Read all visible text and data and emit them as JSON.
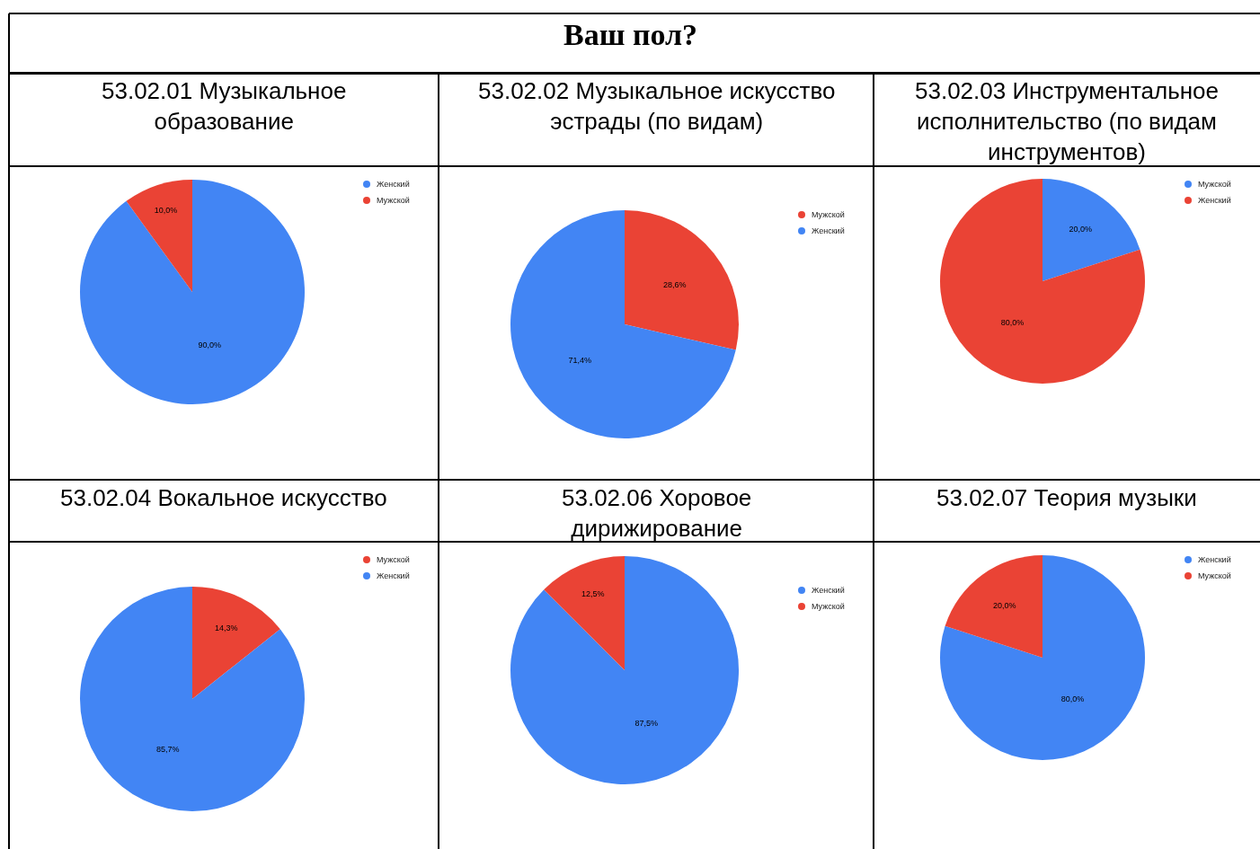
{
  "chart_data": [
    {
      "type": "pie",
      "title": "53.02.01 Музыкальное\nобразование",
      "annotations": [
        "Ваш пол?"
      ],
      "categories": [
        "Женский",
        "Мужской"
      ],
      "values": [
        90.0,
        10.0
      ],
      "colors": [
        "#4285f4",
        "#ea4335"
      ],
      "value_labels": [
        "90,0%",
        "10,0%"
      ],
      "legend": "top right"
    },
    {
      "type": "pie",
      "title": "53.02.02 Музыкальное искусство\nэстрады (по видам)",
      "categories": [
        "Мужской",
        "Женский"
      ],
      "values": [
        28.6,
        71.4
      ],
      "colors": [
        "#ea4335",
        "#4285f4"
      ],
      "value_labels": [
        "28,6%",
        "71,4%"
      ],
      "legend": "top right"
    },
    {
      "type": "pie",
      "title": "53.02.03 Инструментальное\nисполнительство (по видам\nинструментов)",
      "categories": [
        "Мужской",
        "Женский"
      ],
      "values": [
        20.0,
        80.0
      ],
      "colors": [
        "#4285f4",
        "#ea4335"
      ],
      "value_labels": [
        "20,0%",
        "80,0%"
      ],
      "legend": "top right"
    },
    {
      "type": "pie",
      "title": "53.02.04 Вокальное искусство",
      "categories": [
        "Мужской",
        "Женский"
      ],
      "values": [
        14.3,
        85.7
      ],
      "colors": [
        "#ea4335",
        "#4285f4"
      ],
      "value_labels": [
        "14,3%",
        "85,7%"
      ],
      "legend": "top right"
    },
    {
      "type": "pie",
      "title": "53.02.06 Хоровое\nдирижирование",
      "categories": [
        "Женский",
        "Мужской"
      ],
      "values": [
        87.5,
        12.5
      ],
      "colors": [
        "#4285f4",
        "#ea4335"
      ],
      "value_labels": [
        "87,5%",
        "12,5%"
      ],
      "legend": "top right"
    },
    {
      "type": "pie",
      "title": "53.02.07 Теория музыки",
      "categories": [
        "Женский",
        "Мужской"
      ],
      "values": [
        80.0,
        20.0
      ],
      "colors": [
        "#4285f4",
        "#ea4335"
      ],
      "value_labels": [
        "80,0%",
        "20,0%"
      ],
      "legend": "top right"
    }
  ]
}
